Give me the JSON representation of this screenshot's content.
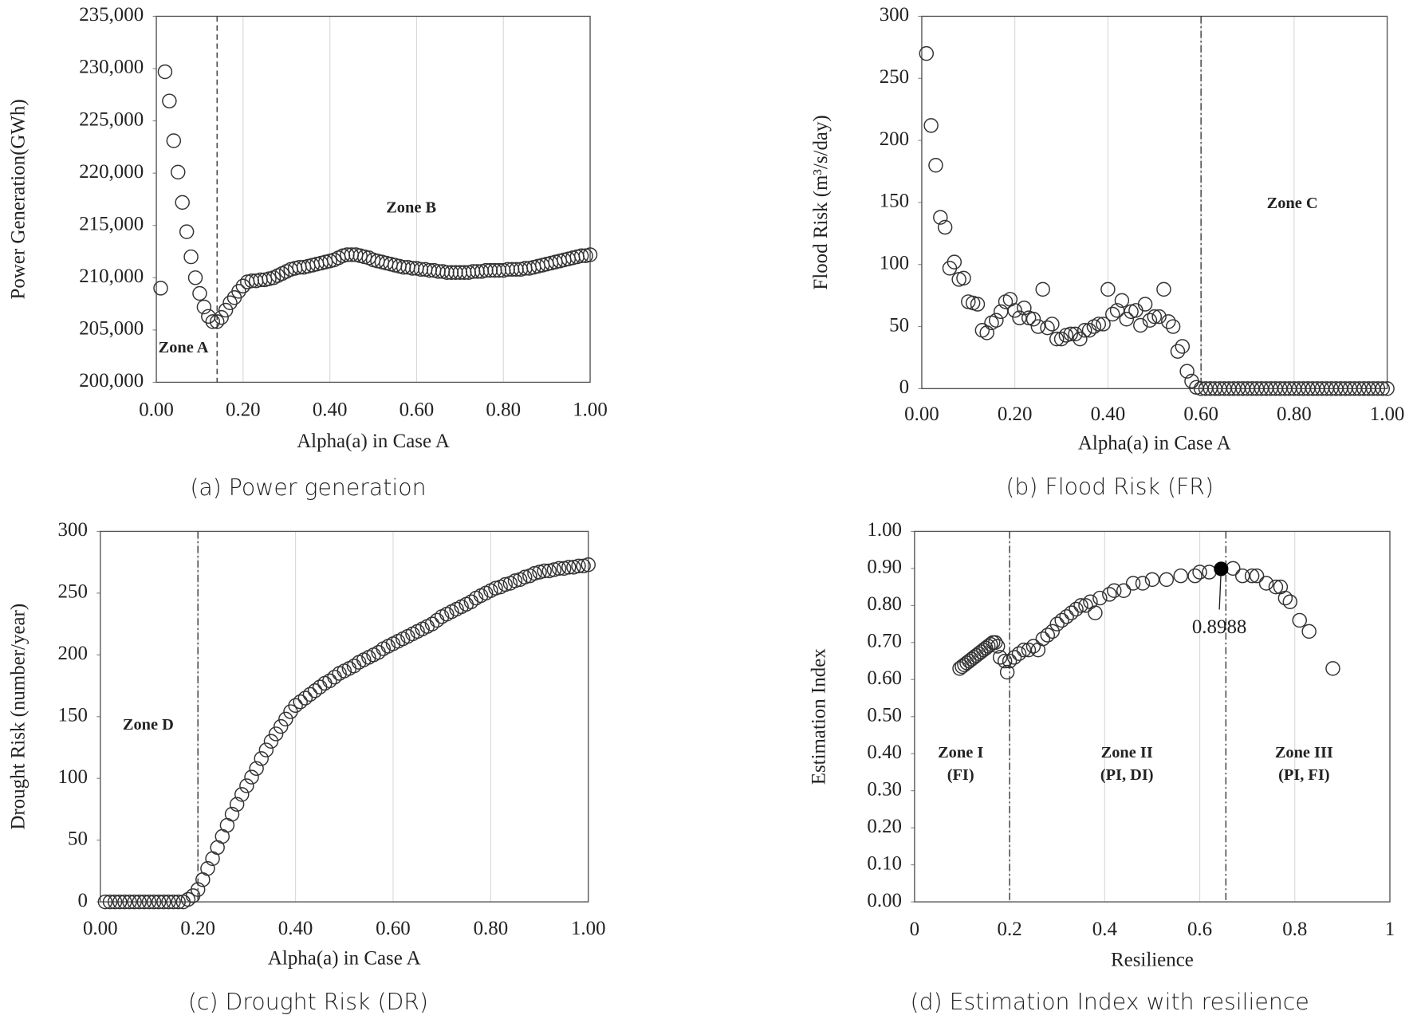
{
  "chart_data": [
    {
      "type": "scatter",
      "caption": "(a) Power generation",
      "xlabel": "Alpha(a) in Case A",
      "ylabel": "Power Generation(GWh)",
      "x": [
        0.01,
        0.02,
        0.03,
        0.04,
        0.05,
        0.06,
        0.07,
        0.08,
        0.09,
        0.1,
        0.11,
        0.12,
        0.13,
        0.14,
        0.15,
        0.16,
        0.17,
        0.18,
        0.19,
        0.2,
        0.21,
        0.22,
        0.23,
        0.24,
        0.25,
        0.26,
        0.27,
        0.28,
        0.29,
        0.3,
        0.31,
        0.32,
        0.33,
        0.34,
        0.35,
        0.36,
        0.37,
        0.38,
        0.39,
        0.4,
        0.41,
        0.42,
        0.43,
        0.44,
        0.45,
        0.46,
        0.47,
        0.48,
        0.49,
        0.5,
        0.51,
        0.52,
        0.53,
        0.54,
        0.55,
        0.56,
        0.57,
        0.58,
        0.59,
        0.6,
        0.61,
        0.62,
        0.63,
        0.64,
        0.65,
        0.66,
        0.67,
        0.68,
        0.69,
        0.7,
        0.71,
        0.72,
        0.73,
        0.74,
        0.75,
        0.76,
        0.77,
        0.78,
        0.79,
        0.8,
        0.81,
        0.82,
        0.83,
        0.84,
        0.85,
        0.86,
        0.87,
        0.88,
        0.89,
        0.9,
        0.91,
        0.92,
        0.93,
        0.94,
        0.95,
        0.96,
        0.97,
        0.98,
        0.99,
        1.0
      ],
      "values": [
        209000,
        229700,
        226900,
        223100,
        220100,
        217200,
        214400,
        212000,
        210000,
        208500,
        207200,
        206300,
        205800,
        205800,
        206200,
        206900,
        207600,
        208100,
        208700,
        209200,
        209600,
        209700,
        209700,
        209800,
        209800,
        209900,
        210000,
        210200,
        210400,
        210600,
        210800,
        210900,
        211000,
        211000,
        211100,
        211200,
        211300,
        211400,
        211500,
        211600,
        211700,
        211900,
        212100,
        212200,
        212200,
        212200,
        212100,
        212000,
        211900,
        211700,
        211600,
        211500,
        211400,
        211300,
        211200,
        211100,
        211000,
        211000,
        210900,
        210900,
        210800,
        210800,
        210700,
        210700,
        210600,
        210600,
        210500,
        210500,
        210500,
        210500,
        210500,
        210500,
        210600,
        210600,
        210600,
        210700,
        210700,
        210700,
        210700,
        210700,
        210800,
        210800,
        210800,
        210800,
        210900,
        210900,
        211000,
        211100,
        211200,
        211300,
        211400,
        211500,
        211600,
        211700,
        211800,
        211900,
        212000,
        212100,
        212100,
        212200
      ],
      "color": "#333333",
      "xlim": [
        0,
        1
      ],
      "ylim": [
        200000,
        235000
      ],
      "xticks": [
        {
          "value": 0,
          "label": "0.00"
        },
        {
          "value": 0.2,
          "label": "0.20"
        },
        {
          "value": 0.4,
          "label": "0.40"
        },
        {
          "value": 0.6,
          "label": "0.60"
        },
        {
          "value": 0.8,
          "label": "0.80"
        },
        {
          "value": 1,
          "label": "1.00"
        }
      ],
      "yticks": [
        {
          "value": 200000,
          "label": "200,000"
        },
        {
          "value": 205000,
          "label": "205,000"
        },
        {
          "value": 210000,
          "label": "210,000"
        },
        {
          "value": 215000,
          "label": "215,000"
        },
        {
          "value": 220000,
          "label": "220,000"
        },
        {
          "value": 225000,
          "label": "225,000"
        },
        {
          "value": 230000,
          "label": "230,000"
        },
        {
          "value": 235000,
          "label": "235,000"
        }
      ],
      "grid": "x",
      "vlines": [
        0.14
      ],
      "vline_style": "dashed",
      "annotations": [
        "Zone B",
        "Zone A"
      ]
    },
    {
      "type": "scatter",
      "caption": "(b) Flood Risk (FR)",
      "xlabel": "Alpha(a) in Case A",
      "ylabel": "Flood Risk (m³/s/day)",
      "x": [
        0.01,
        0.02,
        0.03,
        0.04,
        0.05,
        0.06,
        0.07,
        0.08,
        0.09,
        0.1,
        0.11,
        0.12,
        0.13,
        0.14,
        0.15,
        0.16,
        0.17,
        0.18,
        0.19,
        0.2,
        0.21,
        0.22,
        0.23,
        0.24,
        0.25,
        0.26,
        0.27,
        0.28,
        0.29,
        0.3,
        0.31,
        0.32,
        0.33,
        0.34,
        0.35,
        0.36,
        0.37,
        0.38,
        0.39,
        0.4,
        0.41,
        0.42,
        0.43,
        0.44,
        0.45,
        0.46,
        0.47,
        0.48,
        0.49,
        0.5,
        0.51,
        0.52,
        0.53,
        0.54,
        0.55,
        0.56,
        0.57,
        0.58,
        0.59,
        0.6,
        0.61,
        0.62,
        0.63,
        0.64,
        0.65,
        0.66,
        0.67,
        0.68,
        0.69,
        0.7,
        0.71,
        0.72,
        0.73,
        0.74,
        0.75,
        0.76,
        0.77,
        0.78,
        0.79,
        0.8,
        0.81,
        0.82,
        0.83,
        0.84,
        0.85,
        0.86,
        0.87,
        0.88,
        0.89,
        0.9,
        0.91,
        0.92,
        0.93,
        0.94,
        0.95,
        0.96,
        0.97,
        0.98,
        0.99,
        1.0
      ],
      "values": [
        270,
        212,
        180,
        138,
        130,
        97,
        102,
        88,
        89,
        70,
        69,
        68,
        47,
        45,
        53,
        55,
        62,
        70,
        72,
        63,
        57,
        65,
        57,
        56,
        50,
        80,
        49,
        52,
        40,
        40,
        43,
        44,
        44,
        40,
        47,
        47,
        50,
        52,
        52,
        80,
        60,
        63,
        71,
        56,
        62,
        63,
        51,
        68,
        55,
        58,
        58,
        80,
        54,
        50,
        30,
        34,
        14,
        6,
        1,
        0,
        0,
        0,
        0,
        0,
        0,
        0,
        0,
        0,
        0,
        0,
        0,
        0,
        0,
        0,
        0,
        0,
        0,
        0,
        0,
        0,
        0,
        0,
        0,
        0,
        0,
        0,
        0,
        0,
        0,
        0,
        0,
        0,
        0,
        0,
        0,
        0,
        0,
        0,
        0,
        0
      ],
      "color": "#333333",
      "xlim": [
        0,
        1
      ],
      "ylim": [
        0,
        300
      ],
      "xticks": [
        {
          "value": 0,
          "label": "0.00"
        },
        {
          "value": 0.2,
          "label": "0.20"
        },
        {
          "value": 0.4,
          "label": "0.40"
        },
        {
          "value": 0.6,
          "label": "0.60"
        },
        {
          "value": 0.8,
          "label": "0.80"
        },
        {
          "value": 1,
          "label": "1.00"
        }
      ],
      "yticks": [
        0,
        50,
        100,
        150,
        200,
        250,
        300
      ],
      "grid": "x",
      "vlines": [
        0.6
      ],
      "vline_style": "dashdot",
      "annotations": [
        "Zone C"
      ]
    },
    {
      "type": "scatter",
      "caption": "(c) Drought Risk (DR)",
      "xlabel": "Alpha(a) in Case A",
      "ylabel": "Drought Risk (number/year)",
      "x": [
        0.01,
        0.02,
        0.03,
        0.04,
        0.05,
        0.06,
        0.07,
        0.08,
        0.09,
        0.1,
        0.11,
        0.12,
        0.13,
        0.14,
        0.15,
        0.16,
        0.17,
        0.18,
        0.19,
        0.2,
        0.21,
        0.22,
        0.23,
        0.24,
        0.25,
        0.26,
        0.27,
        0.28,
        0.29,
        0.3,
        0.31,
        0.32,
        0.33,
        0.34,
        0.35,
        0.36,
        0.37,
        0.38,
        0.39,
        0.4,
        0.41,
        0.42,
        0.43,
        0.44,
        0.45,
        0.46,
        0.47,
        0.48,
        0.49,
        0.5,
        0.51,
        0.52,
        0.53,
        0.54,
        0.55,
        0.56,
        0.57,
        0.58,
        0.59,
        0.6,
        0.61,
        0.62,
        0.63,
        0.64,
        0.65,
        0.66,
        0.67,
        0.68,
        0.69,
        0.7,
        0.71,
        0.72,
        0.73,
        0.74,
        0.75,
        0.76,
        0.77,
        0.78,
        0.79,
        0.8,
        0.81,
        0.82,
        0.83,
        0.84,
        0.85,
        0.86,
        0.87,
        0.88,
        0.89,
        0.9,
        0.91,
        0.92,
        0.93,
        0.94,
        0.95,
        0.96,
        0.97,
        0.98,
        0.99,
        1.0
      ],
      "values": [
        0,
        0,
        0,
        0,
        0,
        0,
        0,
        0,
        0,
        0,
        0,
        0,
        0,
        0,
        0,
        0,
        0,
        2,
        5,
        10,
        18,
        27,
        35,
        44,
        53,
        62,
        71,
        79,
        87,
        94,
        101,
        108,
        116,
        123,
        130,
        136,
        142,
        148,
        154,
        159,
        162,
        165,
        168,
        171,
        174,
        177,
        179,
        182,
        185,
        187,
        189,
        191,
        194,
        196,
        198,
        200,
        202,
        205,
        207,
        209,
        211,
        213,
        215,
        217,
        219,
        221,
        223,
        225,
        228,
        231,
        233,
        235,
        237,
        239,
        241,
        243,
        246,
        248,
        250,
        252,
        254,
        255,
        257,
        258,
        260,
        261,
        263,
        264,
        266,
        267,
        268,
        268,
        269,
        270,
        270,
        271,
        271,
        272,
        272,
        273
      ],
      "color": "#333333",
      "xlim": [
        0,
        1
      ],
      "ylim": [
        0,
        300
      ],
      "xticks": [
        {
          "value": 0,
          "label": "0.00"
        },
        {
          "value": 0.2,
          "label": "0.20"
        },
        {
          "value": 0.4,
          "label": "0.40"
        },
        {
          "value": 0.6,
          "label": "0.60"
        },
        {
          "value": 0.8,
          "label": "0.80"
        },
        {
          "value": 1,
          "label": "1.00"
        }
      ],
      "yticks": [
        0,
        50,
        100,
        150,
        200,
        250,
        300
      ],
      "grid": "x",
      "vlines": [
        0.2
      ],
      "vline_style": "dashdot",
      "annotations": [
        "Zone D"
      ]
    },
    {
      "type": "scatter",
      "caption": "(d) Estimation Index with resilience",
      "xlabel": "Resilience",
      "ylabel": "Estimation Index",
      "x": [
        0.095,
        0.1,
        0.105,
        0.11,
        0.115,
        0.12,
        0.125,
        0.13,
        0.135,
        0.14,
        0.145,
        0.15,
        0.155,
        0.16,
        0.165,
        0.17,
        0.175,
        0.18,
        0.19,
        0.195,
        0.2,
        0.21,
        0.22,
        0.23,
        0.24,
        0.25,
        0.26,
        0.27,
        0.28,
        0.29,
        0.3,
        0.31,
        0.32,
        0.33,
        0.34,
        0.35,
        0.36,
        0.37,
        0.38,
        0.39,
        0.41,
        0.42,
        0.44,
        0.46,
        0.48,
        0.5,
        0.53,
        0.56,
        0.59,
        0.6,
        0.62,
        0.67,
        0.69,
        0.71,
        0.72,
        0.74,
        0.76,
        0.77,
        0.78,
        0.79,
        0.81,
        0.83,
        0.88
      ],
      "values": [
        0.63,
        0.635,
        0.64,
        0.645,
        0.65,
        0.655,
        0.66,
        0.665,
        0.67,
        0.675,
        0.68,
        0.685,
        0.69,
        0.695,
        0.7,
        0.7,
        0.69,
        0.66,
        0.65,
        0.62,
        0.65,
        0.66,
        0.67,
        0.68,
        0.68,
        0.69,
        0.68,
        0.71,
        0.72,
        0.73,
        0.75,
        0.76,
        0.77,
        0.78,
        0.79,
        0.8,
        0.8,
        0.81,
        0.78,
        0.82,
        0.83,
        0.84,
        0.84,
        0.86,
        0.86,
        0.87,
        0.87,
        0.88,
        0.88,
        0.89,
        0.89,
        0.9,
        0.88,
        0.88,
        0.88,
        0.86,
        0.85,
        0.85,
        0.82,
        0.81,
        0.76,
        0.73,
        0.63
      ],
      "color": "#333333",
      "xlim": [
        0,
        1
      ],
      "ylim": [
        0,
        1
      ],
      "xticks": [
        0,
        0.2,
        0.4,
        0.6,
        0.8,
        1
      ],
      "yticks": [
        {
          "value": 0,
          "label": "0.00"
        },
        {
          "value": 0.1,
          "label": "0.10"
        },
        {
          "value": 0.2,
          "label": "0.20"
        },
        {
          "value": 0.3,
          "label": "0.30"
        },
        {
          "value": 0.4,
          "label": "0.40"
        },
        {
          "value": 0.5,
          "label": "0.50"
        },
        {
          "value": 0.6,
          "label": "0.60"
        },
        {
          "value": 0.7,
          "label": "0.70"
        },
        {
          "value": 0.8,
          "label": "0.80"
        },
        {
          "value": 0.9,
          "label": "0.90"
        },
        {
          "value": 1,
          "label": "1.00"
        }
      ],
      "highlight": {
        "x": 0.645,
        "value": 0.8988,
        "color": "#000000"
      },
      "grid": "x",
      "vlines": [
        0.2,
        0.655
      ],
      "vline_style": "dashdot",
      "annotations": [
        "Zone I",
        "(FI)",
        "Zone II",
        "(PI, DI)",
        "Zone III",
        "(PI, FI)"
      ]
    }
  ]
}
